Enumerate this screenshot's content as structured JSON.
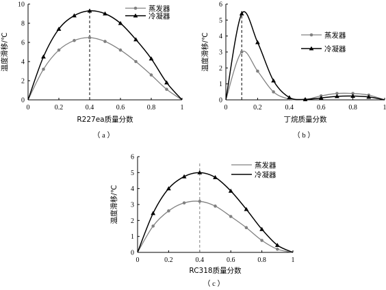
{
  "colors": {
    "evaporator": "#808080",
    "condenser": "#000000",
    "axis": "#000000"
  },
  "chart_data": [
    {
      "type": "line",
      "caption": "（ a ）",
      "xlabel": "R227ea质量分数",
      "ylabel": "温度滑移/℃",
      "xlim": [
        0,
        1
      ],
      "ylim": [
        0,
        10
      ],
      "xticks": [
        0,
        0.2,
        0.4,
        0.6,
        0.8,
        1
      ],
      "xtick_labels": [
        "0",
        "0.2",
        "0.4",
        "0.6",
        "0.8",
        "1"
      ],
      "yticks": [
        0,
        2,
        4,
        6,
        8,
        10
      ],
      "ytick_labels": [
        "0",
        "2",
        "4",
        "6",
        "8",
        "10"
      ],
      "peak_x": 0.4,
      "legend_position": "top-right",
      "series": [
        {
          "name": "蒸发器",
          "marker": "circle",
          "key": "evaporator",
          "x": [
            0,
            0.1,
            0.2,
            0.3,
            0.4,
            0.5,
            0.6,
            0.7,
            0.8,
            0.9,
            1
          ],
          "values": [
            0,
            3.2,
            5.2,
            6.2,
            6.5,
            6.1,
            5.2,
            4.0,
            2.6,
            1.1,
            0
          ]
        },
        {
          "name": "冷凝器",
          "marker": "triangle",
          "key": "condenser",
          "x": [
            0,
            0.1,
            0.2,
            0.3,
            0.4,
            0.5,
            0.6,
            0.7,
            0.8,
            0.9,
            1
          ],
          "values": [
            0,
            4.5,
            7.4,
            8.8,
            9.3,
            9.0,
            8.0,
            6.3,
            4.3,
            1.8,
            0
          ]
        }
      ]
    },
    {
      "type": "line",
      "caption": "（ b ）",
      "xlabel": "丁烷质量分数",
      "ylabel": "温度滑移/℃",
      "xlim": [
        0,
        1
      ],
      "ylim": [
        0,
        6
      ],
      "xticks": [
        0,
        0.2,
        0.4,
        0.6,
        0.8,
        1
      ],
      "xtick_labels": [
        "0",
        "0.2",
        "0.4",
        "0.6",
        "0.8",
        "1"
      ],
      "yticks": [
        0,
        1,
        2,
        3,
        4,
        5,
        6
      ],
      "ytick_labels": [
        "0",
        "1",
        "2",
        "3",
        "4",
        "5",
        "6"
      ],
      "peak_x": 0.1,
      "legend_position": "right",
      "series": [
        {
          "name": "蒸发器",
          "marker": "circle",
          "key": "evaporator",
          "x": [
            0,
            0.1,
            0.2,
            0.3,
            0.4,
            0.5,
            0.6,
            0.7,
            0.8,
            0.9,
            1
          ],
          "values": [
            0,
            3.0,
            1.8,
            0.5,
            0.05,
            0.02,
            0.25,
            0.4,
            0.4,
            0.3,
            0
          ]
        },
        {
          "name": "冷凝器",
          "marker": "triangle",
          "key": "condenser",
          "x": [
            0,
            0.1,
            0.2,
            0.3,
            0.4,
            0.5,
            0.6,
            0.7,
            0.8,
            0.9,
            1
          ],
          "values": [
            0,
            5.4,
            3.6,
            1.2,
            0.15,
            0.03,
            0.12,
            0.22,
            0.24,
            0.18,
            0
          ]
        }
      ]
    },
    {
      "type": "line",
      "caption": "（ c ）",
      "xlabel": "RC318质量分数",
      "ylabel": "温度滑移/℃",
      "xlim": [
        0,
        1
      ],
      "ylim": [
        0,
        6
      ],
      "xticks": [
        0,
        0.2,
        0.4,
        0.6,
        0.8,
        1
      ],
      "xtick_labels": [
        "0",
        "0.2",
        "0.4",
        "0.6",
        "0.8",
        "1"
      ],
      "yticks": [
        0,
        1,
        2,
        3,
        4,
        5,
        6
      ],
      "ytick_labels": [
        "0",
        "1",
        "2",
        "3",
        "4",
        "5",
        "6"
      ],
      "peak_x": 0.4,
      "legend_position": "top-right",
      "series": [
        {
          "name": "蒸发器",
          "marker": "circle",
          "key": "evaporator",
          "x": [
            0,
            0.1,
            0.2,
            0.3,
            0.4,
            0.5,
            0.6,
            0.7,
            0.8,
            0.9,
            1
          ],
          "values": [
            0,
            1.65,
            2.6,
            3.1,
            3.2,
            2.9,
            2.25,
            1.55,
            0.75,
            0.2,
            0
          ]
        },
        {
          "name": "冷凝器",
          "marker": "triangle",
          "key": "condenser",
          "x": [
            0,
            0.1,
            0.2,
            0.3,
            0.4,
            0.5,
            0.6,
            0.7,
            0.8,
            0.9,
            1
          ],
          "values": [
            0,
            2.45,
            4.0,
            4.75,
            5.0,
            4.7,
            3.85,
            2.7,
            1.45,
            0.45,
            0
          ]
        }
      ]
    }
  ]
}
